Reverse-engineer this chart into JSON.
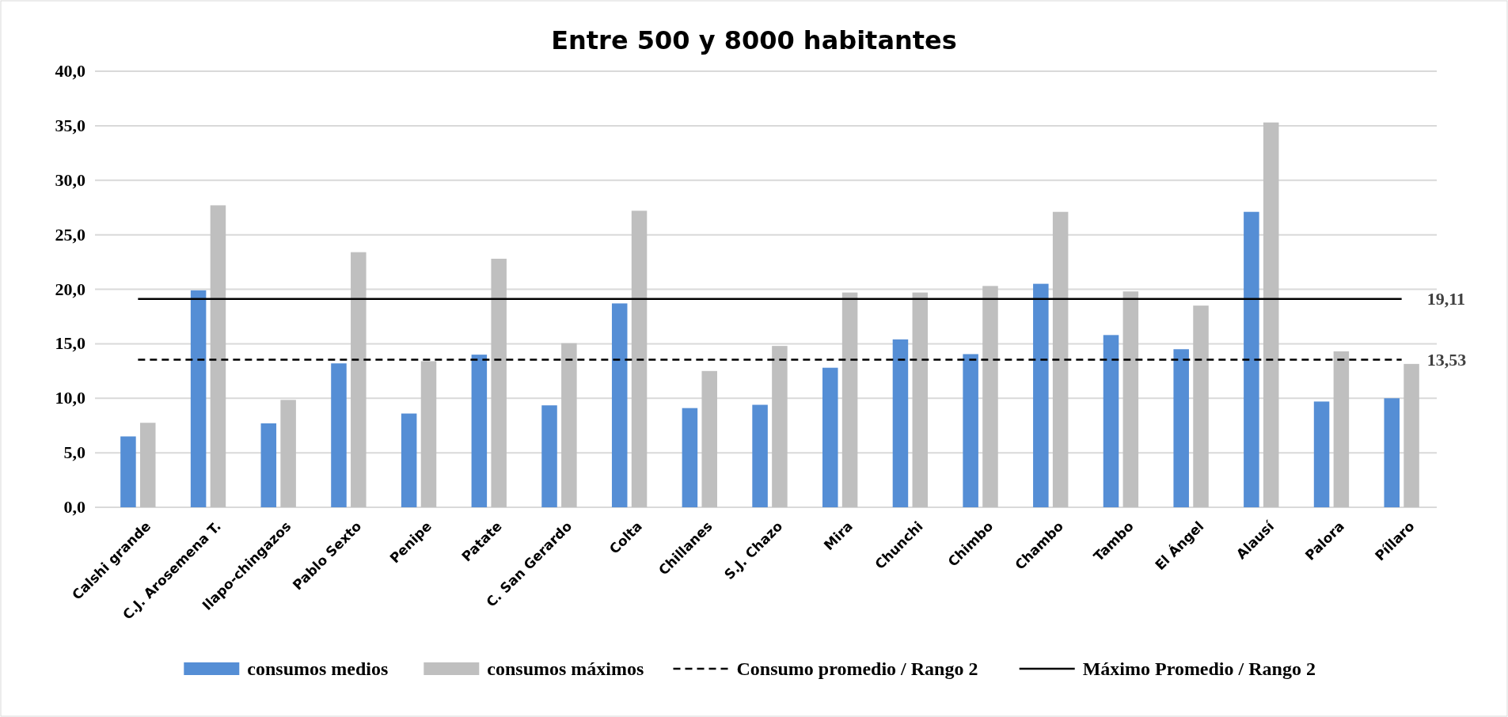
{
  "chart_data": {
    "type": "bar",
    "title": "Entre 500 y 8000 habitantes",
    "categories": [
      "Calshi grande",
      "C.J. Arosemena T.",
      "Ilapo-chingazos",
      "Pablo Sexto",
      "Penipe",
      "Patate",
      "C. San Gerardo",
      "Colta",
      "Chillanes",
      "S.J. Chazo",
      "Mira",
      "Chunchi",
      "Chimbo",
      "Chambo",
      "Tambo",
      "El Ángel",
      "Alausí",
      "Palora",
      "Píllaro"
    ],
    "series": [
      {
        "name": "consumos medios",
        "color": "#558ed5",
        "values": [
          6.5,
          19.9,
          7.7,
          13.2,
          8.6,
          14.0,
          9.35,
          18.7,
          9.1,
          9.4,
          12.8,
          15.4,
          14.05,
          20.5,
          15.8,
          14.5,
          27.1,
          9.7,
          10.0
        ]
      },
      {
        "name": "consumos máximos",
        "color": "#bfbfbf",
        "values": [
          7.75,
          27.7,
          9.85,
          23.4,
          13.4,
          22.8,
          15.05,
          27.2,
          12.5,
          14.8,
          19.7,
          19.7,
          20.3,
          27.1,
          19.8,
          18.5,
          35.3,
          14.3,
          13.15
        ]
      },
      {
        "name": "Consumo promedio / Rango 2",
        "type": "line",
        "color": "#000000",
        "line_style": "dashed",
        "values": [
          13.53,
          13.53,
          13.53,
          13.53,
          13.53,
          13.53,
          13.53,
          13.53,
          13.53,
          13.53,
          13.53,
          13.53,
          13.53,
          13.53,
          13.53,
          13.53,
          13.53,
          13.53,
          13.53
        ],
        "value_labels": [
          null,
          null,
          null,
          null,
          null,
          null,
          null,
          null,
          null,
          null,
          null,
          null,
          null,
          null,
          null,
          null,
          null,
          null,
          "13,53"
        ]
      },
      {
        "name": "Máximo Promedio / Rango 2",
        "type": "line",
        "color": "#000000",
        "line_style": "solid",
        "values": [
          19.11,
          19.11,
          19.11,
          19.11,
          19.11,
          19.11,
          19.11,
          19.11,
          19.11,
          19.11,
          19.11,
          19.11,
          19.11,
          19.11,
          19.11,
          19.11,
          19.11,
          19.11,
          19.11
        ],
        "value_labels": [
          null,
          null,
          null,
          null,
          null,
          null,
          null,
          null,
          null,
          null,
          null,
          null,
          null,
          null,
          null,
          null,
          null,
          null,
          "19,11"
        ]
      }
    ],
    "ylim": [
      0,
      40
    ],
    "yticks": [
      {
        "value": 0,
        "label": "0,0"
      },
      {
        "value": 5,
        "label": "5,0"
      },
      {
        "value": 10,
        "label": "10,0"
      },
      {
        "value": 15,
        "label": "15,0"
      },
      {
        "value": 20,
        "label": "20,0"
      },
      {
        "value": 25,
        "label": "25,0"
      },
      {
        "value": 30,
        "label": "30,0"
      },
      {
        "value": 35,
        "label": "35,0"
      },
      {
        "value": 40,
        "label": "40,0"
      }
    ],
    "grid": "y",
    "legend": "bottom"
  }
}
